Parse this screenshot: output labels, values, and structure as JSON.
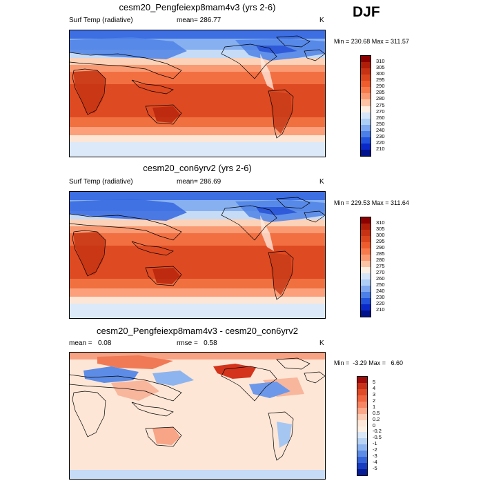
{
  "season": "DJF",
  "panels": [
    {
      "title": "cesm20_Pengfeiexp8mam4v3 (yrs 2-6)",
      "left_label": "Surf Temp (radiative)",
      "center_label": "mean= 286.77",
      "units": "K",
      "minmax": "Min = 230.68 Max = 311.57",
      "colorbar": {
        "labels": [
          "310",
          "305",
          "300",
          "295",
          "290",
          "285",
          "280",
          "275",
          "270",
          "260",
          "250",
          "240",
          "230",
          "220",
          "210"
        ],
        "colors": [
          "#8b0000",
          "#b01e0a",
          "#c83214",
          "#dc461e",
          "#ee5c2e",
          "#f77a4d",
          "#fb9a72",
          "#fcc3a5",
          "#fdefe2",
          "#d6e6f8",
          "#aecef5",
          "#7fa8f0",
          "#4c7fe8",
          "#2352dc",
          "#0a28c8",
          "#00128c"
        ]
      }
    },
    {
      "title": "cesm20_con6yrv2 (yrs 2-6)",
      "left_label": "Surf Temp (radiative)",
      "center_label": "mean= 286.69",
      "units": "K",
      "minmax": "Min = 229.53 Max = 311.64",
      "colorbar": {
        "labels": [
          "310",
          "305",
          "300",
          "295",
          "290",
          "285",
          "280",
          "275",
          "270",
          "260",
          "250",
          "240",
          "230",
          "220",
          "210"
        ],
        "colors": [
          "#8b0000",
          "#b01e0a",
          "#c83214",
          "#dc461e",
          "#ee5c2e",
          "#f77a4d",
          "#fb9a72",
          "#fcc3a5",
          "#fdefe2",
          "#d6e6f8",
          "#aecef5",
          "#7fa8f0",
          "#4c7fe8",
          "#2352dc",
          "#0a28c8",
          "#00128c"
        ]
      }
    },
    {
      "title": "cesm20_Pengfeiexp8mam4v3 - cesm20_con6yrv2",
      "left_label": "mean =   0.08",
      "center_label": "rmse =   0.58",
      "units": "K",
      "minmax": "Min =  -3.29 Max =   6.60",
      "colorbar": {
        "labels": [
          "5",
          "4",
          "3",
          "2",
          "1",
          "0.5",
          "0.2",
          "0",
          "-0.2",
          "-0.5",
          "-1",
          "-2",
          "-3",
          "-4",
          "-5"
        ],
        "colors": [
          "#a00c0c",
          "#c8321a",
          "#e04a26",
          "#f06440",
          "#f78462",
          "#fba88a",
          "#fdccb4",
          "#fee8da",
          "#fdf0e4",
          "#dbe8f8",
          "#b8d2f4",
          "#8db4ee",
          "#5c8ce6",
          "#3563d8",
          "#183cc0",
          "#061c96"
        ]
      }
    }
  ]
}
